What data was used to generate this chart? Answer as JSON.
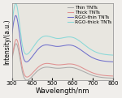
{
  "title": "",
  "xlabel": "Wavelength/nm",
  "ylabel": "Intensity/(a.u.)",
  "xlim": [
    300,
    800
  ],
  "ylim": [
    0.0,
    1.0
  ],
  "legend_labels": [
    "Thin TNTs",
    "Thick TNTs",
    "RGO-thin TNTs",
    "RGO-thick TNTs"
  ],
  "line_colors": [
    "#aaaaaa",
    "#e09090",
    "#7070cc",
    "#88d8d8"
  ],
  "background_color": "#f0eeeb",
  "axes_facecolor": "#e8e6e0",
  "xlabel_fontsize": 6,
  "ylabel_fontsize": 5.5,
  "tick_fontsize": 5,
  "legend_fontsize": 4.2
}
